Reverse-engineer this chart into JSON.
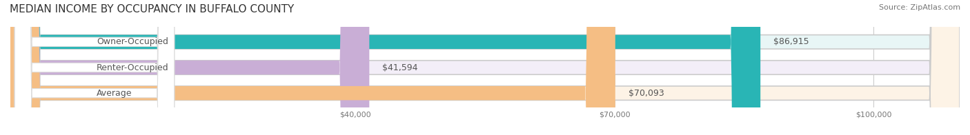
{
  "title": "MEDIAN INCOME BY OCCUPANCY IN BUFFALO COUNTY",
  "source": "Source: ZipAtlas.com",
  "categories": [
    "Owner-Occupied",
    "Renter-Occupied",
    "Average"
  ],
  "values": [
    86915,
    41594,
    70093
  ],
  "labels": [
    "$86,915",
    "$41,594",
    "$70,093"
  ],
  "bar_colors": [
    "#29b5b5",
    "#c9aed6",
    "#f5be84"
  ],
  "bar_bg_colors": [
    "#e8f6f6",
    "#f3eef8",
    "#fdf3e6"
  ],
  "xmax": 110000,
  "xticks": [
    40000,
    70000,
    100000
  ],
  "xticklabels": [
    "$40,000",
    "$70,000",
    "$100,000"
  ],
  "title_fontsize": 11,
  "source_fontsize": 8,
  "label_fontsize": 9,
  "bar_height": 0.55,
  "background_color": "#ffffff"
}
